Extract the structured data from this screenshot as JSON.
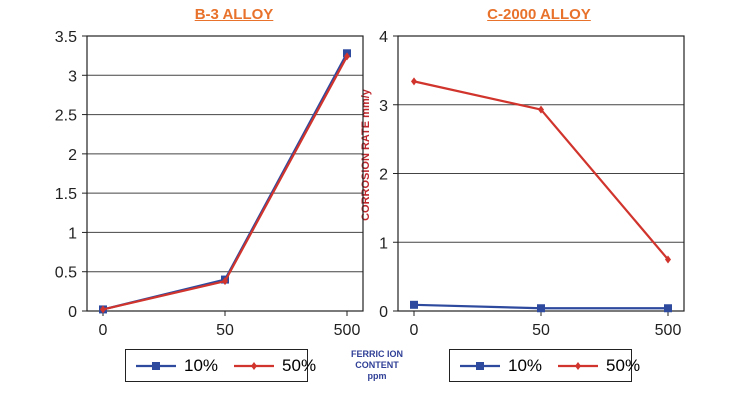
{
  "colors": {
    "title": "#e8722b",
    "axis_label": "#c0272d",
    "xlabel": "#2f3f96",
    "series_10": "#2e4a9e",
    "series_50": "#d0342c",
    "grid": "#444444"
  },
  "xlabel_lines": [
    "FERRIC ION",
    "CONTENT",
    "ppm"
  ],
  "chart_data": [
    {
      "type": "line",
      "title": "B-3 ALLOY",
      "categories": [
        "0",
        "50",
        "500"
      ],
      "ylim": [
        0,
        3.5
      ],
      "yticks": [
        "0",
        "0.5",
        "1",
        "1.5",
        "2",
        "2.5",
        "3",
        "3.5"
      ],
      "ylabel": "",
      "grid": true,
      "legend": "bottom",
      "series": [
        {
          "name": "10%",
          "values": [
            0.02,
            0.4,
            3.28
          ],
          "marker": "square"
        },
        {
          "name": "50%",
          "values": [
            0.02,
            0.38,
            3.24
          ],
          "marker": "diamond"
        }
      ]
    },
    {
      "type": "line",
      "title": "C-2000 ALLOY",
      "categories": [
        "0",
        "50",
        "500"
      ],
      "ylim": [
        0,
        4
      ],
      "yticks": [
        "0",
        "1",
        "2",
        "3",
        "4"
      ],
      "ylabel": "CORROSION RATE mm/y",
      "grid": true,
      "legend": "bottom",
      "series": [
        {
          "name": "10%",
          "values": [
            0.09,
            0.04,
            0.04
          ],
          "marker": "square"
        },
        {
          "name": "50%",
          "values": [
            3.34,
            2.93,
            0.75
          ],
          "marker": "diamond"
        }
      ]
    }
  ]
}
